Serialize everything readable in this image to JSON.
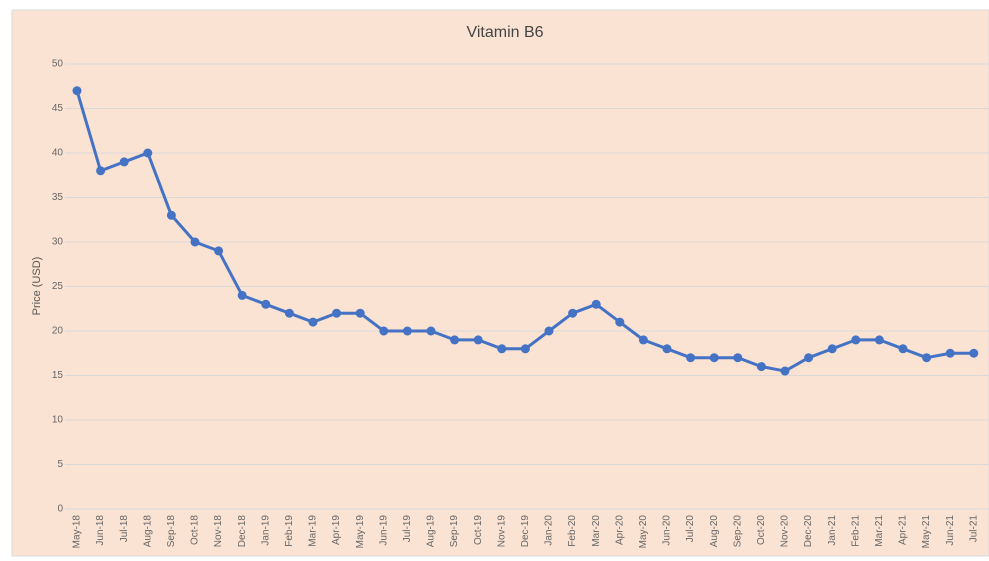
{
  "chart_data": {
    "type": "line",
    "title": "Vitamin B6",
    "y_label": "Price (USD)",
    "categories": [
      "May-18",
      "Jun-18",
      "Jul-18",
      "Aug-18",
      "Sep-18",
      "Oct-18",
      "Nov-18",
      "Dec-18",
      "Jan-19",
      "Feb-19",
      "Mar-19",
      "Apr-19",
      "May-19",
      "Jun-19",
      "Jul-19",
      "Aug-19",
      "Sep-19",
      "Oct-19",
      "Nov-19",
      "Dec-19",
      "Jan-20",
      "Feb-20",
      "Mar-20",
      "Apr-20",
      "May-20",
      "Jun-20",
      "Jul-20",
      "Aug-20",
      "Sep-20",
      "Oct-20",
      "Nov-20",
      "Dec-20",
      "Jan-21",
      "Feb-21",
      "Mar-21",
      "Apr-21",
      "May-21",
      "Jun-21",
      "Jul-21"
    ],
    "series": [
      {
        "name": "Vitamin B6",
        "color": "#4472c4",
        "values": [
          47,
          38,
          39,
          40,
          33,
          30,
          29,
          24,
          23,
          22,
          21,
          22,
          22,
          20,
          20,
          20,
          19,
          19,
          18,
          18,
          20,
          22,
          23,
          21,
          19,
          18,
          17,
          17,
          17,
          16,
          15.5,
          17,
          18,
          19,
          19,
          18,
          17,
          17.5,
          17.5
        ]
      }
    ],
    "ylim": [
      0,
      50
    ],
    "yticks": [
      0,
      5,
      10,
      15,
      20,
      25,
      30,
      35,
      40,
      45,
      50
    ],
    "grid": true
  }
}
